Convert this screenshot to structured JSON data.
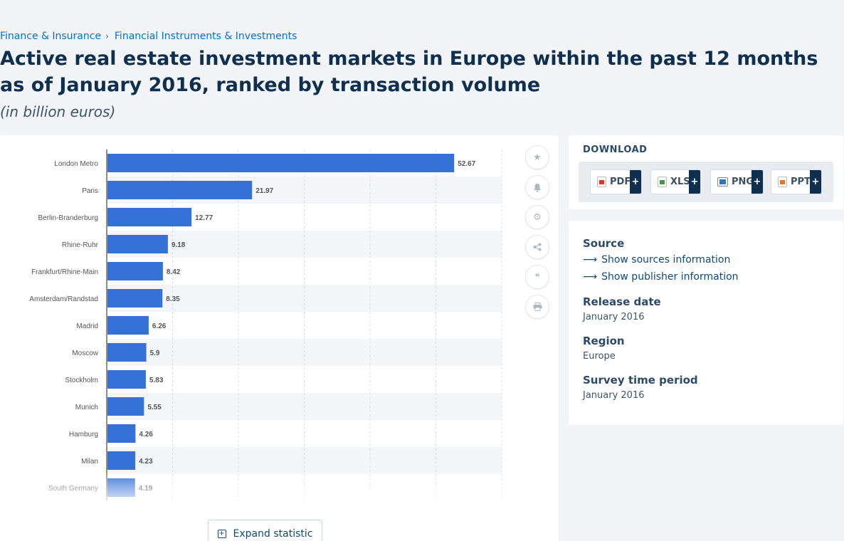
{
  "breadcrumb": {
    "item1": "Finance & Insurance",
    "separator": "›",
    "item2": "Financial Instruments & Investments"
  },
  "title": "Active real estate investment markets in Europe within the past 12 months as of January 2016, ranked by transaction volume",
  "subtitle": "(in billion euros)",
  "chart_data": {
    "type": "bar",
    "orientation": "horizontal",
    "categories": [
      "London Metro",
      "Paris",
      "Berlin-Branderburg",
      "Rhine-Ruhr",
      "Frankfurt/Rhine-Main",
      "Amsterdam/Randstad",
      "Madrid",
      "Moscow",
      "Stockholm",
      "Munich",
      "Hamburg",
      "Milan",
      "South Germany"
    ],
    "values": [
      52.67,
      21.97,
      12.77,
      9.18,
      8.42,
      8.35,
      6.26,
      5.9,
      5.83,
      5.55,
      4.26,
      4.23,
      4.19
    ],
    "value_labels": [
      "52.67",
      "21.97",
      "12.77",
      "9.18",
      "8.42",
      "8.35",
      "6.26",
      "5.9",
      "5.83",
      "5.55",
      "4.26",
      "4.23",
      "4.19"
    ],
    "xlim": [
      0,
      60
    ],
    "grid": true,
    "bar_color": "#3472d8"
  },
  "tools": {
    "icons": [
      "star-icon",
      "bell-icon",
      "gear-icon",
      "share-icon",
      "quote-icon",
      "print-icon"
    ]
  },
  "expand_button": "Expand statistic",
  "download": {
    "title": "DOWNLOAD",
    "buttons": [
      {
        "label": "PDF",
        "plus": "+",
        "color": "#d9362b"
      },
      {
        "label": "XLS",
        "plus": "+",
        "color": "#3e9a3a"
      },
      {
        "label": "PNG",
        "plus": "+",
        "color": "#2a78c2"
      },
      {
        "label": "PPT",
        "plus": "+",
        "color": "#e5762e"
      }
    ]
  },
  "info": {
    "source_label": "Source",
    "show_sources": "Show sources information",
    "show_publisher": "Show publisher information",
    "release_label": "Release date",
    "release_value": "January 2016",
    "region_label": "Region",
    "region_value": "Europe",
    "survey_label": "Survey time period",
    "survey_value": "January 2016"
  }
}
